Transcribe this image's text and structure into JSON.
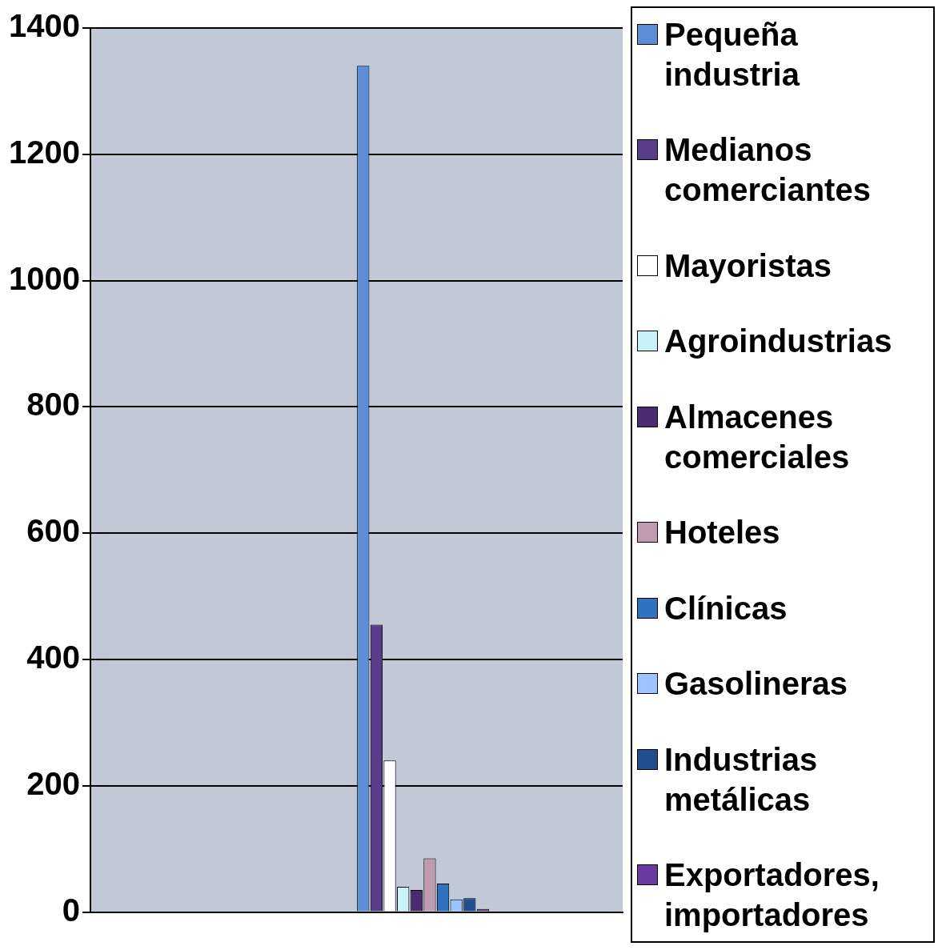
{
  "chart_data": {
    "type": "bar",
    "categories": [
      null,
      null,
      null,
      null
    ],
    "series": [
      {
        "name": "Pequeña industria",
        "color": "#5b8ed6",
        "values": [
          null,
          null,
          1340,
          null
        ]
      },
      {
        "name": "Medianos comerciantes",
        "color": "#5a3d8a",
        "values": [
          null,
          null,
          455,
          null
        ]
      },
      {
        "name": "Mayoristas",
        "color": "#ffffff",
        "values": [
          null,
          null,
          240,
          null
        ]
      },
      {
        "name": "Agroindustrias",
        "color": "#c8f2f8",
        "values": [
          null,
          null,
          40,
          null
        ]
      },
      {
        "name": "Almacenes comerciales",
        "color": "#4a2a70",
        "values": [
          null,
          null,
          35,
          null
        ]
      },
      {
        "name": "Hoteles",
        "color": "#c09ab0",
        "values": [
          null,
          null,
          85,
          null
        ]
      },
      {
        "name": "Clínicas",
        "color": "#2f73c0",
        "values": [
          null,
          null,
          45,
          null
        ]
      },
      {
        "name": "Gasolineras",
        "color": "#9cc4ff",
        "values": [
          null,
          null,
          20,
          null
        ]
      },
      {
        "name": "Industrias metálicas",
        "color": "#1f4f8f",
        "values": [
          null,
          null,
          22,
          null
        ]
      },
      {
        "name": "Exportadores, importadores",
        "color": "#6a3aa0",
        "values": [
          null,
          null,
          5,
          null
        ]
      }
    ],
    "ylim": [
      0,
      1400
    ],
    "yticks": [
      0,
      200,
      400,
      600,
      800,
      1000,
      1200,
      1400
    ],
    "grid": "y",
    "legend": "right"
  }
}
